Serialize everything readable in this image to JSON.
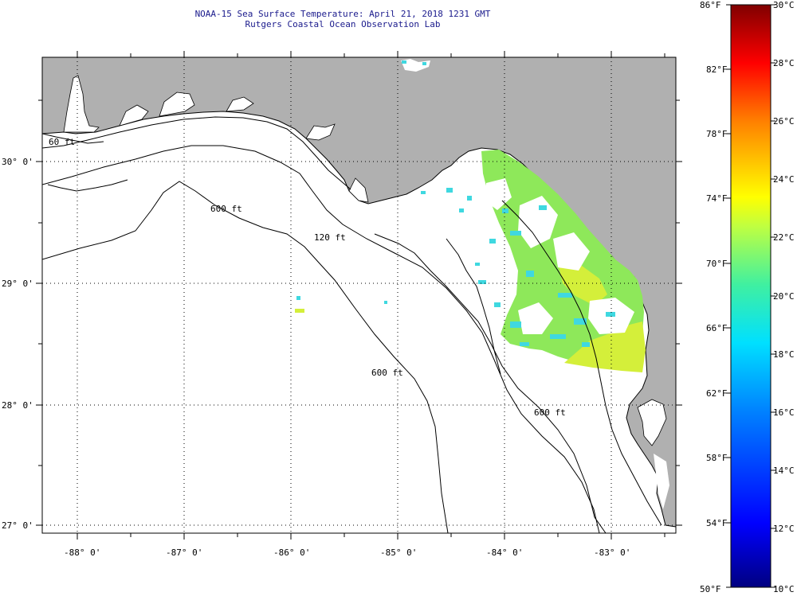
{
  "title": {
    "line1": "NOAA-15 Sea Surface Temperature:  April 21, 2018 1231 GMT",
    "line2": "Rutgers Coastal Ocean Observation Lab"
  },
  "axes": {
    "lat_labels": [
      "30° 0'",
      "29° 0'",
      "28° 0'",
      "27° 0'"
    ],
    "lon_labels": [
      "-88° 0'",
      "-87° 0'",
      "-86° 0'",
      "-85° 0'",
      "-84° 0'",
      "-83° 0'"
    ]
  },
  "contours": [
    "60 ft",
    "120 ft",
    "600 ft",
    "600 ft",
    "600 ft"
  ],
  "colorbar": {
    "fahrenheit": [
      "86°F",
      "82°F",
      "78°F",
      "74°F",
      "70°F",
      "66°F",
      "62°F",
      "58°F",
      "54°F",
      "50°F"
    ],
    "celsius": [
      "30°C",
      "28°C",
      "26°C",
      "24°C",
      "22°C",
      "20°C",
      "18°C",
      "16°C",
      "14°C",
      "12°C",
      "10°C"
    ]
  },
  "colors": {
    "land": "#b0b0b0",
    "title_text": "#1a1a8c",
    "sst_green": "#8ee85a",
    "sst_cyan": "#3fd8e0",
    "sst_yellow": "#d4ef3a"
  }
}
